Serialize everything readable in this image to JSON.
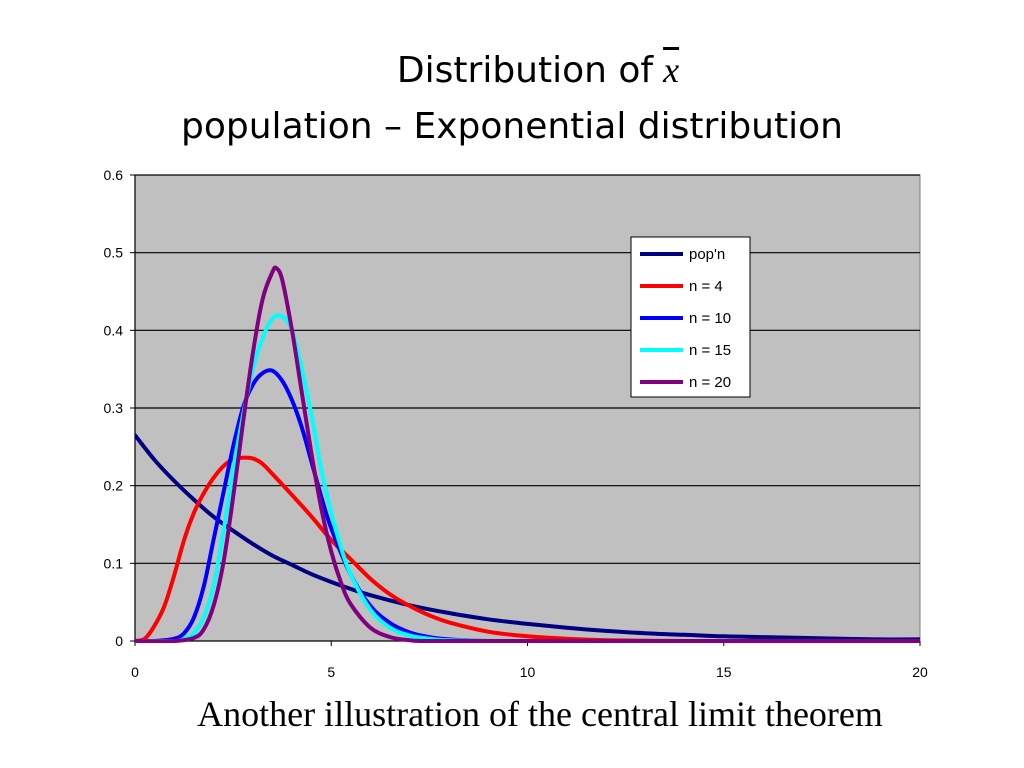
{
  "title": {
    "line1": "Distribution of",
    "symbol": "x",
    "line2": "population – Exponential distribution"
  },
  "caption": "Another illustration of the central limit theorem",
  "chart_data": {
    "type": "line",
    "xlim": [
      0,
      20
    ],
    "ylim": [
      0,
      0.6
    ],
    "x_ticks": [
      "0",
      "5",
      "10",
      "15",
      "20"
    ],
    "y_ticks": [
      "0",
      "0.1",
      "0.2",
      "0.3",
      "0.4",
      "0.5",
      "0.6"
    ],
    "grid": true,
    "plot_background": "#c0c0c0",
    "legend_position": "top-right",
    "series": [
      {
        "name": "pop'n",
        "color": "#000080",
        "x": [
          0,
          0.5,
          1,
          1.5,
          2,
          2.5,
          3,
          3.5,
          4,
          4.5,
          5,
          5.5,
          6,
          7,
          8,
          9,
          10,
          11,
          12,
          13,
          14,
          15,
          16,
          17,
          18,
          19,
          20
        ],
        "y": [
          0.265,
          0.233,
          0.206,
          0.182,
          0.16,
          0.142,
          0.125,
          0.11,
          0.098,
          0.086,
          0.076,
          0.067,
          0.059,
          0.046,
          0.036,
          0.028,
          0.022,
          0.017,
          0.013,
          0.01,
          0.008,
          0.006,
          0.005,
          0.004,
          0.003,
          0.002,
          0.002
        ]
      },
      {
        "name": "n = 4",
        "color": "#ff0000",
        "x": [
          0,
          0.25,
          0.5,
          0.75,
          1,
          1.25,
          1.5,
          1.75,
          2,
          2.25,
          2.5,
          2.75,
          3,
          3.25,
          3.5,
          4,
          4.5,
          5,
          5.5,
          6,
          6.5,
          7,
          7.5,
          8,
          9,
          10,
          11,
          12,
          14,
          16,
          20
        ],
        "y": [
          0,
          0.003,
          0.02,
          0.045,
          0.085,
          0.13,
          0.165,
          0.19,
          0.21,
          0.225,
          0.234,
          0.236,
          0.235,
          0.228,
          0.215,
          0.188,
          0.16,
          0.13,
          0.105,
          0.08,
          0.06,
          0.045,
          0.033,
          0.024,
          0.012,
          0.006,
          0.003,
          0.001,
          0,
          0,
          0
        ]
      },
      {
        "name": "n = 10",
        "color": "#0000ff",
        "x": [
          0,
          0.5,
          1,
          1.25,
          1.5,
          1.75,
          2,
          2.25,
          2.5,
          2.75,
          3,
          3.25,
          3.5,
          3.75,
          4,
          4.25,
          4.5,
          4.75,
          5,
          5.5,
          6,
          6.5,
          7,
          7.5,
          8,
          9,
          10,
          12,
          16,
          20
        ],
        "y": [
          0,
          0,
          0.003,
          0.01,
          0.03,
          0.07,
          0.13,
          0.19,
          0.25,
          0.3,
          0.33,
          0.345,
          0.348,
          0.335,
          0.31,
          0.275,
          0.23,
          0.185,
          0.145,
          0.085,
          0.045,
          0.023,
          0.011,
          0.005,
          0.002,
          0,
          0,
          0,
          0,
          0
        ]
      },
      {
        "name": "n = 15",
        "color": "#00ffff",
        "x": [
          0,
          1,
          1.25,
          1.5,
          1.75,
          2,
          2.25,
          2.5,
          2.75,
          3,
          3.25,
          3.5,
          3.75,
          4,
          4.25,
          4.5,
          4.75,
          5,
          5.25,
          5.5,
          6,
          6.5,
          7,
          7.5,
          8,
          10,
          14,
          20
        ],
        "y": [
          0,
          0,
          0.003,
          0.01,
          0.03,
          0.07,
          0.14,
          0.22,
          0.29,
          0.35,
          0.39,
          0.415,
          0.418,
          0.4,
          0.35,
          0.29,
          0.22,
          0.165,
          0.12,
          0.085,
          0.04,
          0.017,
          0.007,
          0.003,
          0.001,
          0,
          0,
          0
        ]
      },
      {
        "name": "n = 20",
        "color": "#800080",
        "x": [
          0,
          1,
          1.5,
          1.75,
          2,
          2.25,
          2.5,
          2.75,
          3,
          3.25,
          3.5,
          3.6,
          3.75,
          4,
          4.25,
          4.5,
          4.75,
          5,
          5.25,
          5.5,
          6,
          6.5,
          7,
          7.5,
          10,
          14,
          20
        ],
        "y": [
          0,
          0,
          0.004,
          0.015,
          0.045,
          0.1,
          0.185,
          0.28,
          0.37,
          0.44,
          0.475,
          0.48,
          0.465,
          0.4,
          0.32,
          0.24,
          0.17,
          0.115,
          0.075,
          0.047,
          0.017,
          0.005,
          0.001,
          0,
          0,
          0,
          0
        ]
      }
    ]
  }
}
